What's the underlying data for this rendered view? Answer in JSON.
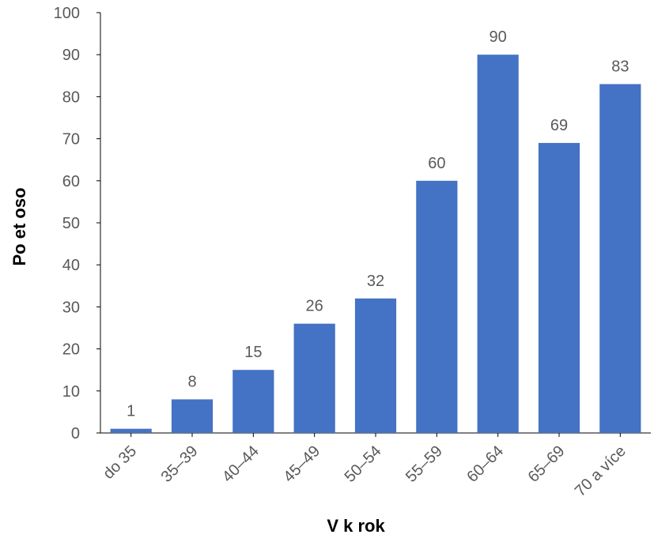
{
  "chart_data": {
    "type": "bar",
    "title": "",
    "xlabel": "V k rok",
    "ylabel": "Po et oso",
    "categories": [
      "do 35",
      "35–39",
      "40–44",
      "45–49",
      "50–54",
      "55–59",
      "60–64",
      "65–69",
      "70 a více"
    ],
    "series": [
      {
        "values": [
          1,
          8,
          15,
          26,
          32,
          60,
          90,
          69,
          83
        ]
      }
    ],
    "ylim": [
      0,
      100
    ],
    "yticks": [
      0,
      10,
      20,
      30,
      40,
      50,
      60,
      70,
      80,
      90,
      100
    ],
    "grid": false,
    "legend": "none",
    "data_labels": true,
    "colors": {
      "bar": "#4472C4",
      "axis": "#000000",
      "tick_text": "#595959",
      "label_text": "#595959",
      "title_text": "#000000"
    }
  }
}
